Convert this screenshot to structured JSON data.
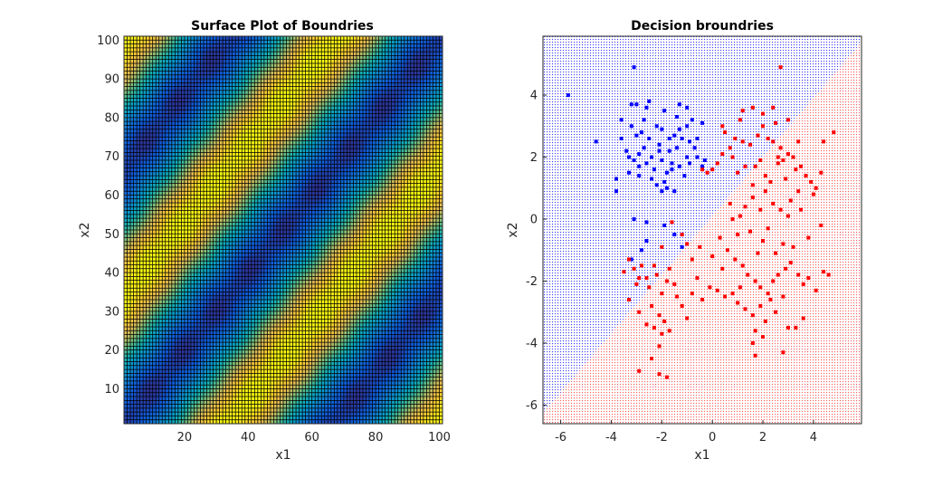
{
  "chart_data": [
    {
      "type": "heatmap",
      "title": "Surface Plot of Boundries",
      "xlabel": "x1",
      "ylabel": "x2",
      "xlim": [
        1,
        101
      ],
      "ylim": [
        1,
        101
      ],
      "xticks": [
        20,
        40,
        60,
        80,
        100
      ],
      "yticks": [
        10,
        20,
        30,
        40,
        50,
        60,
        70,
        80,
        90,
        100
      ],
      "grid_size": 100,
      "colormap": "parula",
      "value_pattern": "smallest along the diagonal x1 = x2, rising to a maximum near |x1 - x2| = 33 and falling again near |x1 - x2| = 66",
      "mesh_edge_color": "#000000"
    },
    {
      "type": "scatter",
      "title": "Decision broundries",
      "xlabel": "x1",
      "ylabel": "x2",
      "xlim": [
        -6.7,
        5.9
      ],
      "ylim": [
        -6.6,
        5.9
      ],
      "xticks": [
        -6,
        -4,
        -2,
        0,
        2,
        4
      ],
      "yticks": [
        -6,
        -4,
        -2,
        0,
        2,
        4
      ],
      "boundary": {
        "slope": 0.95,
        "intercept": 0.1,
        "above_class": "blue",
        "below_class": "red"
      },
      "background_colors": {
        "blue": "#3a3aff",
        "red": "#ff5a5a"
      },
      "series": [
        {
          "class": "blue",
          "color": "#0000ff",
          "points": [
            [
              -5.7,
              4.0
            ],
            [
              -4.6,
              2.5
            ],
            [
              -3.1,
              4.9
            ],
            [
              -3.2,
              3.7
            ],
            [
              -3.0,
              3.7
            ],
            [
              -2.6,
              3.6
            ],
            [
              -1.9,
              3.5
            ],
            [
              -1.4,
              3.3
            ],
            [
              -1.3,
              3.7
            ],
            [
              -1.0,
              3.0
            ],
            [
              -0.8,
              3.2
            ],
            [
              -3.6,
              2.6
            ],
            [
              -3.4,
              2.2
            ],
            [
              -3.3,
              2.0
            ],
            [
              -3.1,
              1.9
            ],
            [
              -2.9,
              2.1
            ],
            [
              -2.7,
              2.3
            ],
            [
              -2.5,
              2.6
            ],
            [
              -2.4,
              2.0
            ],
            [
              -2.3,
              1.6
            ],
            [
              -2.1,
              2.4
            ],
            [
              -2.0,
              1.9
            ],
            [
              -1.9,
              1.2
            ],
            [
              -1.8,
              1.5
            ],
            [
              -1.7,
              2.2
            ],
            [
              -1.6,
              1.8
            ],
            [
              -1.5,
              2.7
            ],
            [
              -1.4,
              2.3
            ],
            [
              -1.3,
              1.7
            ],
            [
              -1.2,
              2.6
            ],
            [
              -1.1,
              1.4
            ],
            [
              -1.0,
              2.0
            ],
            [
              -0.9,
              1.8
            ],
            [
              -0.7,
              2.3
            ],
            [
              -0.6,
              2.6
            ],
            [
              -0.4,
              1.7
            ],
            [
              -0.4,
              3.1
            ],
            [
              -3.0,
              2.7
            ],
            [
              -2.8,
              2.8
            ],
            [
              -2.6,
              1.8
            ],
            [
              -2.4,
              1.3
            ],
            [
              -2.2,
              1.1
            ],
            [
              -2.0,
              0.9
            ],
            [
              -1.8,
              1.0
            ],
            [
              -1.6,
              1.6
            ],
            [
              -1.5,
              0.9
            ],
            [
              -2.9,
              1.4
            ],
            [
              -3.2,
              3.0
            ],
            [
              -2.7,
              3.2
            ],
            [
              -2.2,
              3.0
            ],
            [
              -2.0,
              2.9
            ],
            [
              -1.7,
              2.6
            ],
            [
              -0.9,
              2.5
            ],
            [
              -0.3,
              1.9
            ],
            [
              -3.8,
              1.3
            ],
            [
              -3.8,
              0.9
            ],
            [
              -3.6,
              3.2
            ],
            [
              -2.5,
              3.8
            ],
            [
              -1.3,
              2.9
            ],
            [
              -2.1,
              2.2
            ],
            [
              -2.9,
              1.7
            ],
            [
              -3.3,
              1.5
            ],
            [
              -1.0,
              3.6
            ],
            [
              -0.6,
              2.0
            ],
            [
              -2.6,
              -0.1
            ],
            [
              -3.1,
              0.0
            ],
            [
              -1.9,
              -0.2
            ],
            [
              -1.5,
              -0.5
            ],
            [
              -1.2,
              -0.9
            ],
            [
              -2.6,
              -0.7
            ],
            [
              -2.8,
              -1.0
            ],
            [
              -3.2,
              -1.3
            ]
          ]
        },
        {
          "class": "red",
          "color": "#ff0000",
          "points": [
            [
              1.6,
              3.6
            ],
            [
              1.8,
              2.7
            ],
            [
              2.0,
              3.0
            ],
            [
              2.2,
              2.6
            ],
            [
              2.4,
              2.5
            ],
            [
              2.5,
              3.1
            ],
            [
              2.7,
              2.3
            ],
            [
              2.8,
              1.9
            ],
            [
              3.0,
              2.1
            ],
            [
              3.2,
              2.0
            ],
            [
              3.3,
              1.6
            ],
            [
              3.5,
              1.7
            ],
            [
              3.7,
              1.4
            ],
            [
              3.9,
              1.2
            ],
            [
              4.1,
              1.0
            ],
            [
              4.4,
              2.5
            ],
            [
              4.8,
              2.8
            ],
            [
              1.7,
              1.7
            ],
            [
              1.9,
              1.9
            ],
            [
              2.1,
              1.4
            ],
            [
              2.3,
              1.2
            ],
            [
              2.6,
              1.8
            ],
            [
              2.9,
              1.3
            ],
            [
              3.1,
              0.6
            ],
            [
              3.4,
              0.9
            ],
            [
              1.5,
              2.4
            ],
            [
              1.2,
              2.5
            ],
            [
              0.9,
              2.6
            ],
            [
              0.7,
              2.3
            ],
            [
              0.5,
              2.8
            ],
            [
              0.4,
              3.0
            ],
            [
              0.2,
              1.8
            ],
            [
              0.0,
              1.6
            ],
            [
              -0.2,
              1.5
            ],
            [
              1.0,
              1.5
            ],
            [
              1.3,
              1.7
            ],
            [
              1.6,
              1.1
            ],
            [
              2.1,
              0.9
            ],
            [
              2.4,
              0.5
            ],
            [
              2.7,
              0.3
            ],
            [
              3.0,
              0.1
            ],
            [
              1.6,
              0.7
            ],
            [
              1.9,
              0.3
            ],
            [
              2.2,
              -0.3
            ],
            [
              0.7,
              0.5
            ],
            [
              1.1,
              0.1
            ],
            [
              1.5,
              -0.4
            ],
            [
              0.3,
              -0.6
            ],
            [
              0.6,
              -1.0
            ],
            [
              0.9,
              -1.3
            ],
            [
              1.2,
              -1.5
            ],
            [
              1.4,
              -1.8
            ],
            [
              1.7,
              -2.0
            ],
            [
              1.9,
              -2.2
            ],
            [
              2.2,
              -2.4
            ],
            [
              2.4,
              -2.0
            ],
            [
              2.6,
              -1.8
            ],
            [
              2.9,
              -1.6
            ],
            [
              3.1,
              -1.4
            ],
            [
              3.4,
              -1.8
            ],
            [
              3.6,
              -2.1
            ],
            [
              3.8,
              -1.9
            ],
            [
              4.1,
              -2.3
            ],
            [
              4.4,
              -1.7
            ],
            [
              4.6,
              -1.8
            ],
            [
              1.0,
              -2.7
            ],
            [
              1.3,
              -2.9
            ],
            [
              1.6,
              -3.1
            ],
            [
              1.9,
              -2.8
            ],
            [
              2.1,
              -3.3
            ],
            [
              2.3,
              -2.6
            ],
            [
              2.5,
              -3.0
            ],
            [
              2.8,
              -2.5
            ],
            [
              3.0,
              -3.5
            ],
            [
              3.3,
              -3.5
            ],
            [
              1.7,
              -3.6
            ],
            [
              2.0,
              -3.8
            ],
            [
              1.1,
              -2.2
            ],
            [
              0.8,
              -2.4
            ],
            [
              0.5,
              -2.5
            ],
            [
              0.2,
              -2.3
            ],
            [
              -0.1,
              -2.2
            ],
            [
              -0.4,
              -2.6
            ],
            [
              -0.6,
              -1.9
            ],
            [
              -0.8,
              -2.4
            ],
            [
              -1.0,
              -3.2
            ],
            [
              -1.2,
              -2.8
            ],
            [
              -1.4,
              -2.5
            ],
            [
              -1.5,
              -2.1
            ],
            [
              -1.7,
              -1.6
            ],
            [
              -1.8,
              -2.0
            ],
            [
              -2.0,
              -2.4
            ],
            [
              -2.2,
              -1.8
            ],
            [
              -2.3,
              -1.5
            ],
            [
              -2.5,
              -2.2
            ],
            [
              -2.6,
              -1.9
            ],
            [
              -2.8,
              -1.5
            ],
            [
              -2.9,
              -1.9
            ],
            [
              -3.1,
              -1.6
            ],
            [
              -3.3,
              -1.3
            ],
            [
              -3.5,
              -1.7
            ],
            [
              -2.4,
              -2.8
            ],
            [
              -2.1,
              -3.1
            ],
            [
              -1.9,
              -3.3
            ],
            [
              -2.3,
              -3.5
            ],
            [
              -2.6,
              -3.4
            ],
            [
              -2.9,
              -3.0
            ],
            [
              -2.0,
              -3.7
            ],
            [
              -1.7,
              -3.6
            ],
            [
              -1.2,
              -0.5
            ],
            [
              -1.0,
              -0.8
            ],
            [
              -0.8,
              -1.3
            ],
            [
              -2.1,
              -4.1
            ],
            [
              -2.4,
              -4.5
            ],
            [
              -2.9,
              -4.9
            ],
            [
              -1.8,
              -5.1
            ],
            [
              -2.1,
              -5.0
            ],
            [
              -0.5,
              -0.9
            ],
            [
              0.0,
              -1.2
            ],
            [
              0.4,
              -1.6
            ],
            [
              3.6,
              -3.2
            ],
            [
              2.8,
              -4.3
            ],
            [
              2.7,
              4.9
            ],
            [
              4.0,
              0.8
            ],
            [
              4.3,
              -0.2
            ],
            [
              3.8,
              -0.6
            ],
            [
              3.5,
              0.3
            ],
            [
              1.0,
              -0.5
            ],
            [
              0.8,
              0.0
            ],
            [
              1.3,
              0.4
            ],
            [
              2.5,
              -1.1
            ],
            [
              2.8,
              -0.8
            ],
            [
              3.2,
              -0.9
            ],
            [
              1.8,
              -1.1
            ],
            [
              2.0,
              -0.7
            ],
            [
              1.6,
              -4.0
            ],
            [
              1.7,
              -4.4
            ],
            [
              -1.6,
              -0.1
            ],
            [
              -2.0,
              -0.9
            ],
            [
              -3.0,
              -2.1
            ],
            [
              -3.3,
              -2.6
            ],
            [
              4.3,
              1.5
            ],
            [
              3.0,
              3.2
            ],
            [
              2.0,
              3.4
            ],
            [
              2.4,
              3.6
            ],
            [
              1.1,
              3.2
            ],
            [
              1.2,
              3.5
            ],
            [
              0.8,
              2.0
            ],
            [
              0.4,
              2.1
            ],
            [
              -0.4,
              1.6
            ],
            [
              3.4,
              2.5
            ],
            [
              2.6,
              2.0
            ]
          ]
        }
      ]
    }
  ]
}
